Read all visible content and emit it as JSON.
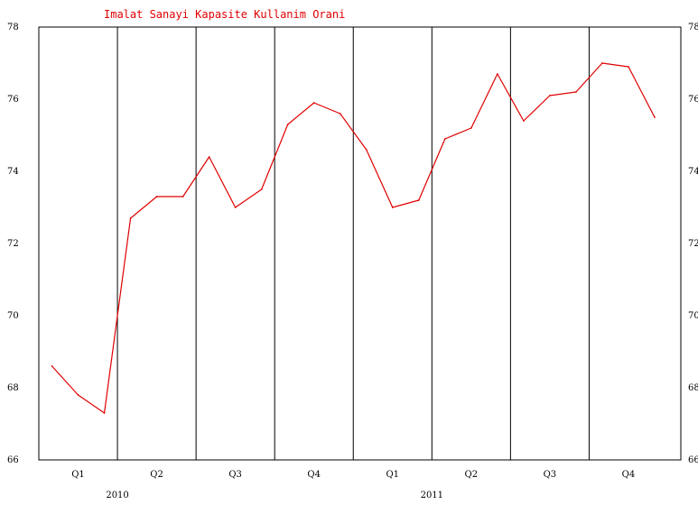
{
  "colors": {
    "line": "#e00000",
    "title": "#e00000",
    "frame": "#000000",
    "background": "#ffffff"
  },
  "chart_data": {
    "type": "line",
    "title": "Imalat Sanayi Kapasite Kullanim Orani",
    "xlabel": "",
    "ylabel": "",
    "ylim": [
      66,
      78
    ],
    "y_ticks_left": [
      "66",
      "68",
      "70",
      "72",
      "74",
      "76",
      "78"
    ],
    "y_ticks_right": [
      "66",
      "68",
      "70",
      "72",
      "74",
      "76",
      "78"
    ],
    "quarters": [
      "Q1",
      "Q2",
      "Q3",
      "Q4",
      "Q1",
      "Q2",
      "Q3",
      "Q4"
    ],
    "years": [
      "2010",
      "2011"
    ],
    "grid": "vertical lines at quarter boundaries",
    "legend": "none",
    "x": [
      "2010-01",
      "2010-02",
      "2010-03",
      "2010-04",
      "2010-05",
      "2010-06",
      "2010-07",
      "2010-08",
      "2010-09",
      "2010-10",
      "2010-11",
      "2010-12",
      "2011-01",
      "2011-02",
      "2011-03",
      "2011-04",
      "2011-05",
      "2011-06",
      "2011-07",
      "2011-08",
      "2011-09",
      "2011-10",
      "2011-11",
      "2011-12"
    ],
    "series": [
      {
        "values": [
          68.6,
          67.8,
          67.3,
          72.7,
          73.3,
          73.3,
          74.4,
          73.0,
          73.5,
          75.3,
          75.9,
          75.6,
          74.6,
          73.0,
          73.2,
          74.9,
          75.2,
          76.7,
          75.4,
          76.1,
          76.2,
          77.0,
          76.9,
          75.5
        ]
      }
    ]
  }
}
